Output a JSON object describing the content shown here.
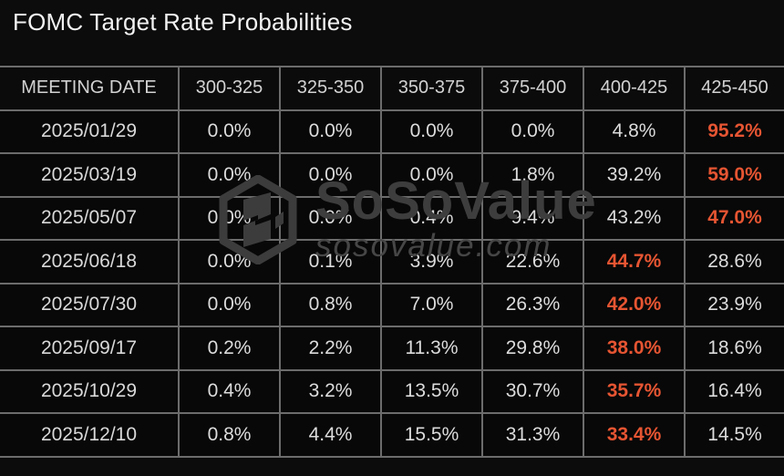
{
  "header": {
    "title": "FOMC Target Rate Probabilities"
  },
  "table": {
    "columns": [
      "MEETING DATE",
      "300-325",
      "325-350",
      "350-375",
      "375-400",
      "400-425",
      "425-450"
    ],
    "rows": [
      {
        "date": "2025/01/29",
        "values": [
          "0.0%",
          "0.0%",
          "0.0%",
          "0.0%",
          "4.8%",
          "95.2%"
        ],
        "highlight": 5
      },
      {
        "date": "2025/03/19",
        "values": [
          "0.0%",
          "0.0%",
          "0.0%",
          "1.8%",
          "39.2%",
          "59.0%"
        ],
        "highlight": 5
      },
      {
        "date": "2025/05/07",
        "values": [
          "0.0%",
          "0.0%",
          "0.4%",
          "9.4%",
          "43.2%",
          "47.0%"
        ],
        "highlight": 5
      },
      {
        "date": "2025/06/18",
        "values": [
          "0.0%",
          "0.1%",
          "3.9%",
          "22.6%",
          "44.7%",
          "28.6%"
        ],
        "highlight": 4
      },
      {
        "date": "2025/07/30",
        "values": [
          "0.0%",
          "0.8%",
          "7.0%",
          "26.3%",
          "42.0%",
          "23.9%"
        ],
        "highlight": 4
      },
      {
        "date": "2025/09/17",
        "values": [
          "0.2%",
          "2.2%",
          "11.3%",
          "29.8%",
          "38.0%",
          "18.6%"
        ],
        "highlight": 4
      },
      {
        "date": "2025/10/29",
        "values": [
          "0.4%",
          "3.2%",
          "13.5%",
          "30.7%",
          "35.7%",
          "16.4%"
        ],
        "highlight": 4
      },
      {
        "date": "2025/12/10",
        "values": [
          "0.8%",
          "4.4%",
          "15.5%",
          "31.3%",
          "33.4%",
          "14.5%"
        ],
        "highlight": 4
      }
    ]
  },
  "watermark": {
    "brand": "SoSoValue",
    "site": "sosovalue.com",
    "logo_icon": "sosovalue-cube-icon"
  },
  "colors": {
    "background": "#0C0C0C",
    "cell_background": "#080808",
    "border": "#6C6C6C",
    "text": "#DCDCDC",
    "title": "#F2F2F2",
    "highlight": "#E65532",
    "watermark": "#3D3D3D"
  },
  "chart_data": {
    "type": "table",
    "title": "FOMC Target Rate Probabilities",
    "x_header": "MEETING DATE",
    "categories": [
      "300-325",
      "325-350",
      "350-375",
      "375-400",
      "400-425",
      "425-450"
    ],
    "units": "%",
    "rows": [
      {
        "meeting_date": "2025/01/29",
        "probabilities_pct": [
          0.0,
          0.0,
          0.0,
          0.0,
          4.8,
          95.2
        ],
        "max_index": 5
      },
      {
        "meeting_date": "2025/03/19",
        "probabilities_pct": [
          0.0,
          0.0,
          0.0,
          1.8,
          39.2,
          59.0
        ],
        "max_index": 5
      },
      {
        "meeting_date": "2025/05/07",
        "probabilities_pct": [
          0.0,
          0.0,
          0.4,
          9.4,
          43.2,
          47.0
        ],
        "max_index": 5
      },
      {
        "meeting_date": "2025/06/18",
        "probabilities_pct": [
          0.0,
          0.1,
          3.9,
          22.6,
          44.7,
          28.6
        ],
        "max_index": 4
      },
      {
        "meeting_date": "2025/07/30",
        "probabilities_pct": [
          0.0,
          0.8,
          7.0,
          26.3,
          42.0,
          23.9
        ],
        "max_index": 4
      },
      {
        "meeting_date": "2025/09/17",
        "probabilities_pct": [
          0.2,
          2.2,
          11.3,
          29.8,
          38.0,
          18.6
        ],
        "max_index": 4
      },
      {
        "meeting_date": "2025/10/29",
        "probabilities_pct": [
          0.4,
          3.2,
          13.5,
          30.7,
          35.7,
          16.4
        ],
        "max_index": 4
      },
      {
        "meeting_date": "2025/12/10",
        "probabilities_pct": [
          0.8,
          4.4,
          15.5,
          31.3,
          33.4,
          14.5
        ],
        "max_index": 4
      }
    ],
    "legend_position": "none",
    "grid": true
  }
}
